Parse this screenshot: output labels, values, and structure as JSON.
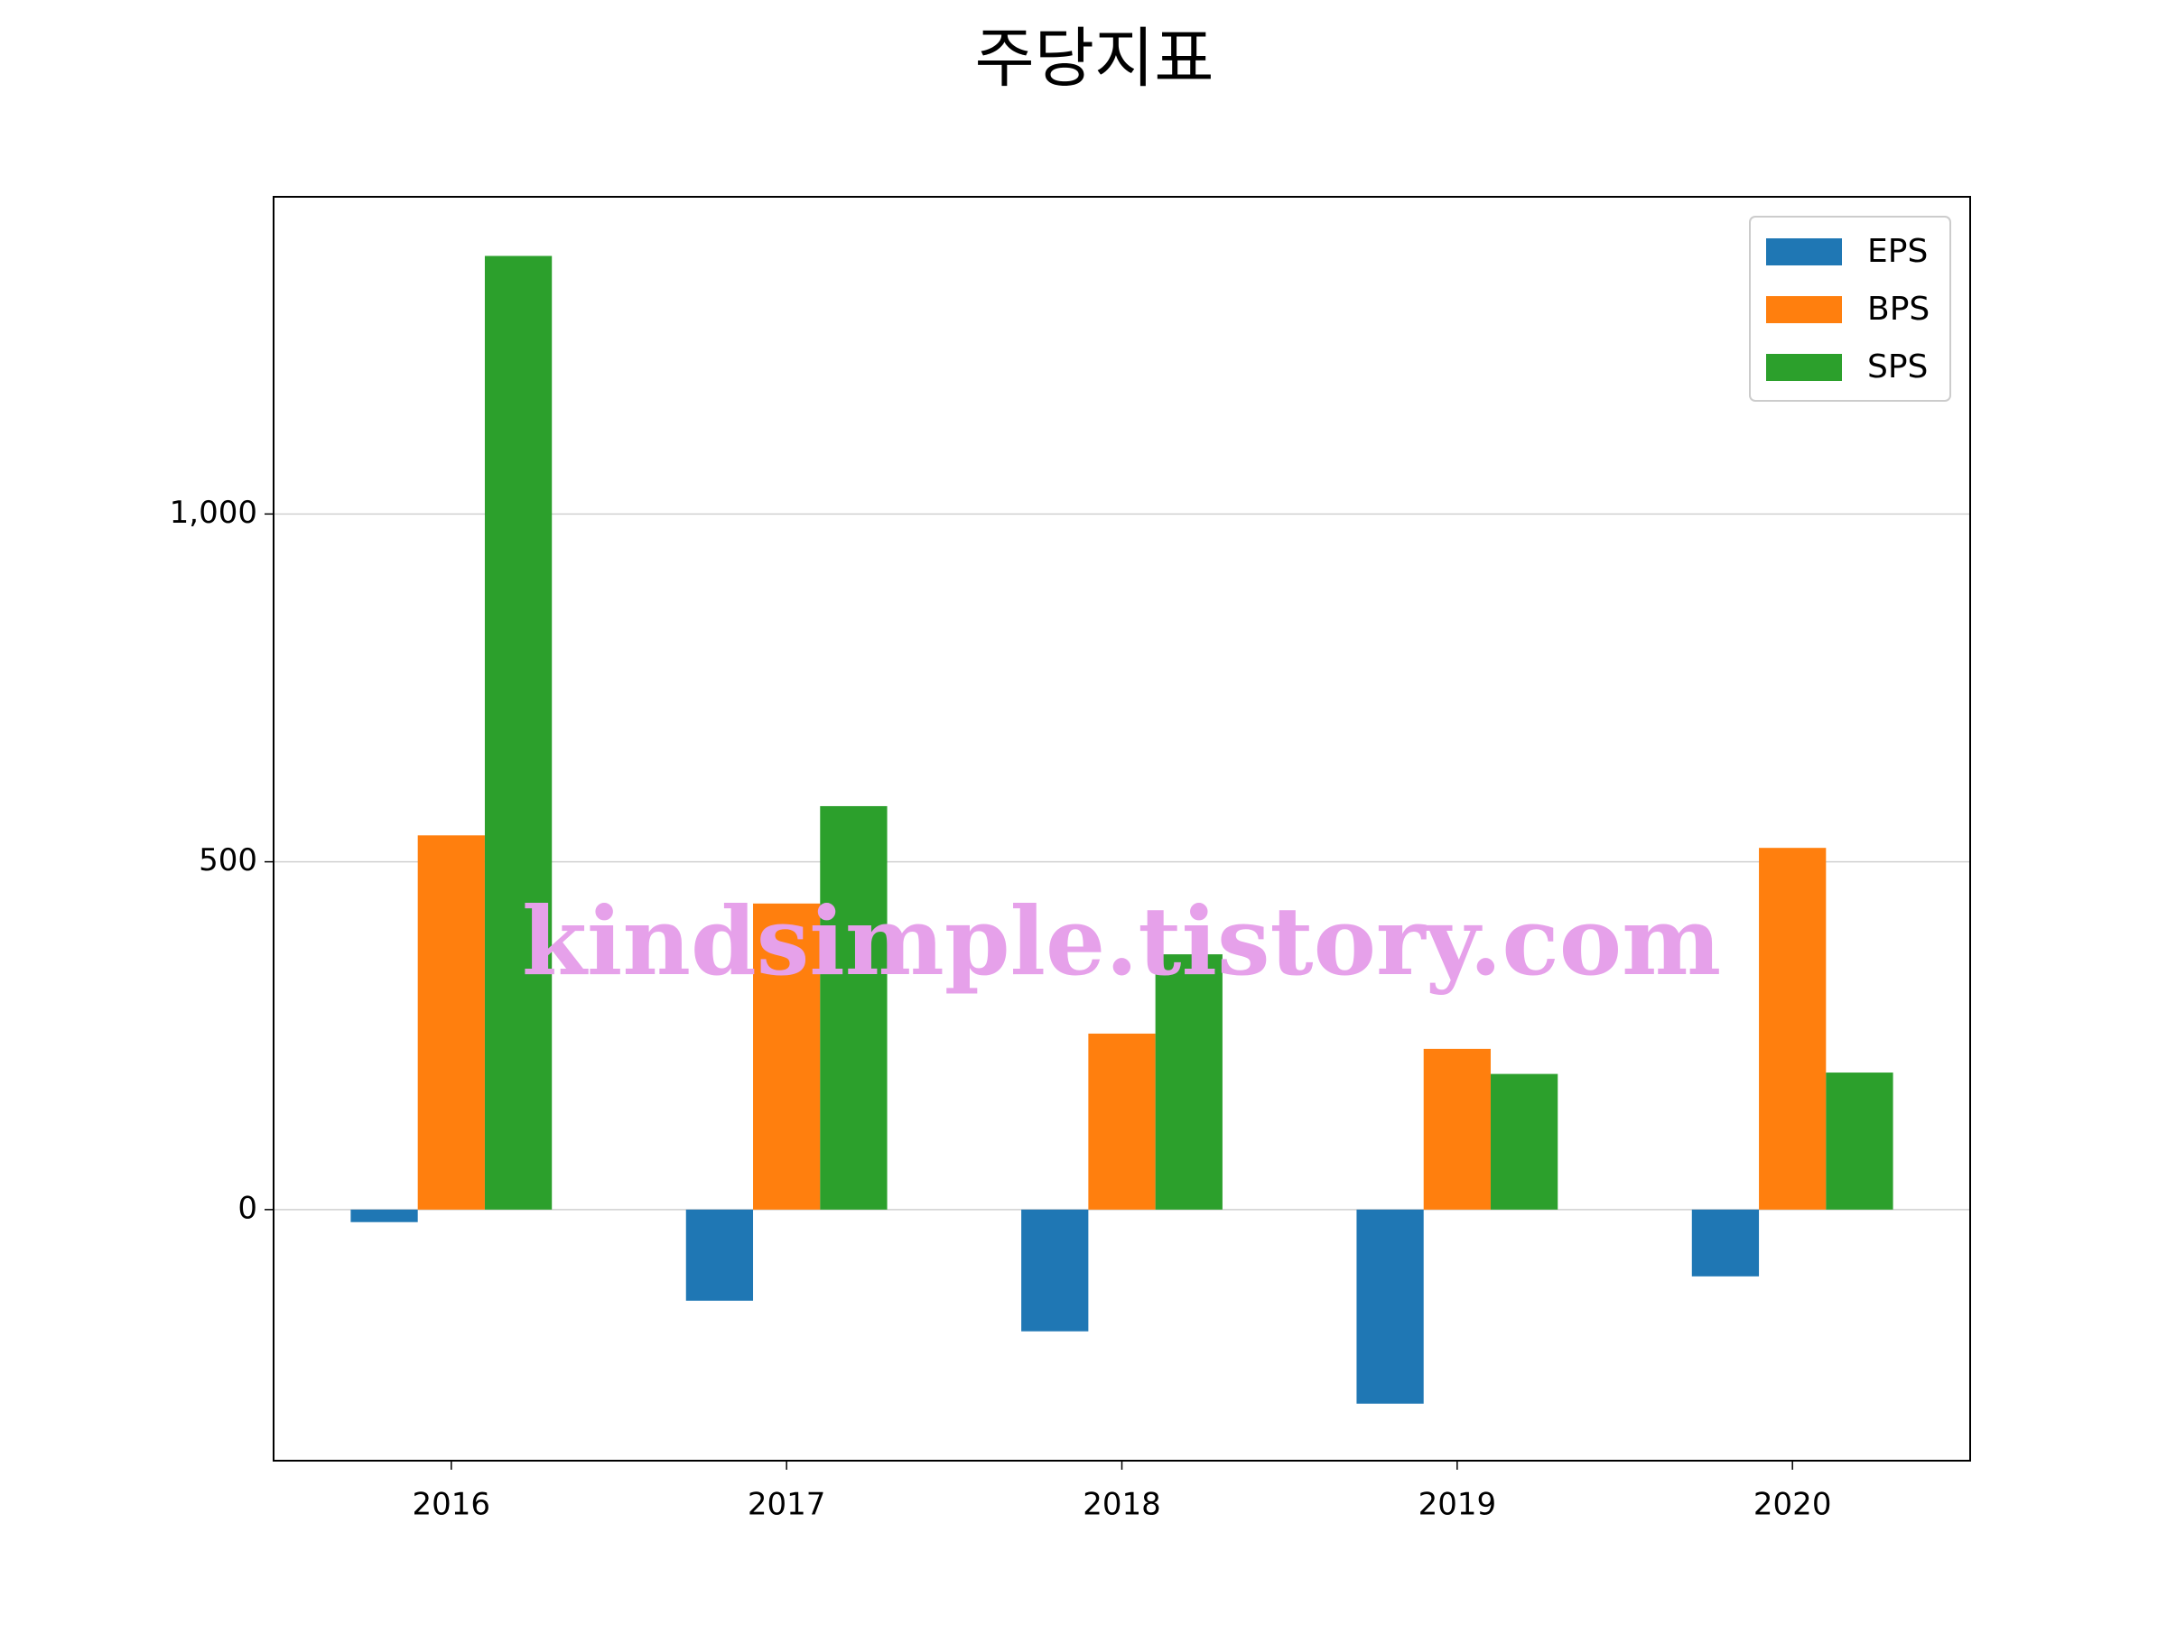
{
  "chart_data": {
    "type": "bar",
    "title": "주당지표",
    "categories": [
      "2016",
      "2017",
      "2018",
      "2019",
      "2020"
    ],
    "series": [
      {
        "name": "EPS",
        "color": "#1f77b4",
        "values": [
          -18,
          -131,
          -175,
          -279,
          -96
        ]
      },
      {
        "name": "BPS",
        "color": "#ff7f0e",
        "values": [
          538,
          440,
          253,
          231,
          520
        ]
      },
      {
        "name": "SPS",
        "color": "#2ca02c",
        "values": [
          1371,
          580,
          367,
          195,
          197
        ]
      }
    ],
    "ylim": [
      -361,
      1456
    ],
    "yticks": [
      0,
      500,
      {
        "value": 1000,
        "label": "1,000"
      }
    ],
    "grid": true,
    "legend": "upper right",
    "annotation": "kindsimple.tistory.com"
  }
}
